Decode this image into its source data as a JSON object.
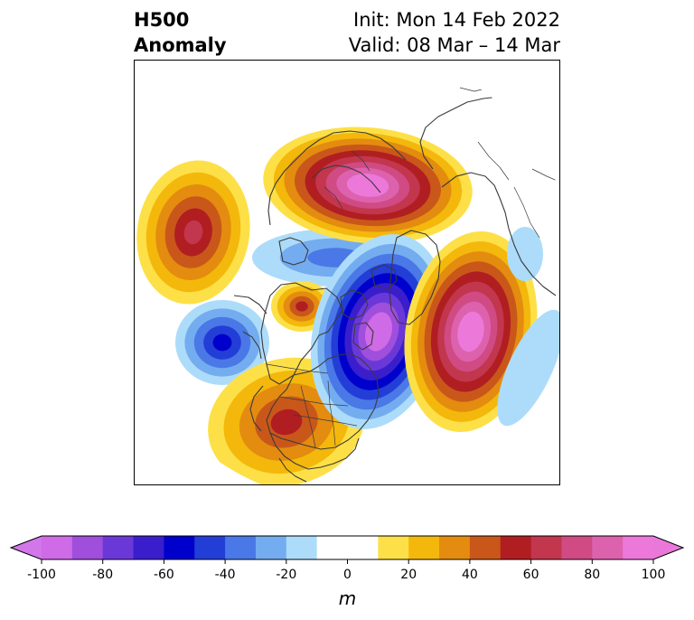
{
  "header": {
    "left_line1": "H500",
    "left_line2": "Anomaly",
    "right_line1": "Init: Mon 14 Feb 2022",
    "right_line2": "Valid: 08 Mar – 14 Mar"
  },
  "map": {
    "field": "500 hPa geopotential height anomaly",
    "projection": "polar stereographic (Northern Hemisphere)",
    "features": [
      {
        "name": "ridge-north-pacific",
        "sign": "positive",
        "peak": 70
      },
      {
        "name": "trough-northeast-pacific",
        "sign": "negative",
        "peak": -60
      },
      {
        "name": "ridge-western-north-america",
        "sign": "positive",
        "peak": 60
      },
      {
        "name": "ridge-alaska-yukon",
        "sign": "positive",
        "peak": 60
      },
      {
        "name": "ridge-siberia-arctic",
        "sign": "positive",
        "peak": 100
      },
      {
        "name": "trough-greenland-canada",
        "sign": "negative",
        "peak": -100
      },
      {
        "name": "trough-arctic-ring",
        "sign": "negative",
        "peak": -40
      },
      {
        "name": "ridge-north-atlantic",
        "sign": "positive",
        "peak": 100
      },
      {
        "name": "trough-europe",
        "sign": "negative",
        "peak": -20
      },
      {
        "name": "trough-eastern-atlantic",
        "sign": "negative",
        "peak": -20
      }
    ]
  },
  "colorbar": {
    "ticks": [
      "-100",
      "-80",
      "-60",
      "-40",
      "-20",
      "0",
      "20",
      "40",
      "60",
      "80",
      "100"
    ],
    "unit": "m",
    "colors": [
      "#cf6be6",
      "#a04edc",
      "#6b38d8",
      "#3a1ecc",
      "#0000cc",
      "#233ed6",
      "#4a78e6",
      "#74acf0",
      "#addcfa",
      "#ffffff",
      "#ffffff",
      "#fde047",
      "#f3b80b",
      "#e38c10",
      "#c9571a",
      "#b01e22",
      "#c2364e",
      "#d04a84",
      "#dd62ae",
      "#ec78d9"
    ],
    "under_color": "#d276ea",
    "over_color": "#ea78da"
  }
}
